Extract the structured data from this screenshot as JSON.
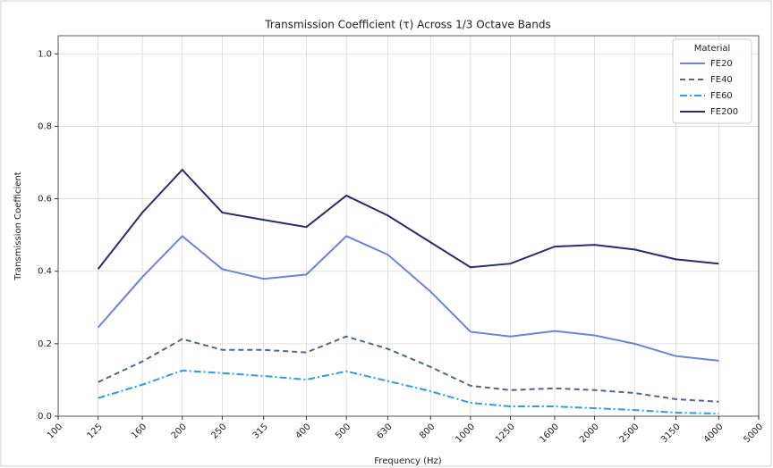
{
  "chart_data": {
    "type": "line",
    "title": "Transmission Coefficient (τ) Across 1/3 Octave Bands",
    "x_label": "Frequency (Hz)",
    "y_label": "Transmission Coefficient",
    "x": [
      125,
      160,
      200,
      250,
      315,
      400,
      500,
      630,
      800,
      1000,
      1250,
      1600,
      2000,
      2500,
      3150,
      4000
    ],
    "xlim": [
      100,
      5000
    ],
    "xticks": [
      100,
      125,
      160,
      200,
      250,
      315,
      400,
      500,
      630,
      800,
      1000,
      1250,
      1600,
      2000,
      2500,
      3150,
      4000,
      5000
    ],
    "x_log": true,
    "ylim": [
      0,
      1.05
    ],
    "yticks": [
      {
        "value": 0,
        "label": "0.0"
      },
      0.2,
      0.4,
      0.6,
      0.8,
      {
        "value": 1,
        "label": "1.0"
      }
    ],
    "grid": true,
    "legend_title": "Material",
    "legend_position": "upper-right",
    "series": [
      {
        "name": "FE20",
        "color": "#6a85d8",
        "dash": "solid",
        "values": [
          0.245,
          0.384,
          0.497,
          0.406,
          0.379,
          0.391,
          0.497,
          0.446,
          0.344,
          0.233,
          0.22,
          0.235,
          0.223,
          0.2,
          0.166,
          0.153
        ]
      },
      {
        "name": "FE40",
        "color": "#4e6690",
        "dash": "dashed",
        "values": [
          0.094,
          0.151,
          0.213,
          0.183,
          0.183,
          0.176,
          0.22,
          0.186,
          0.136,
          0.084,
          0.072,
          0.077,
          0.072,
          0.064,
          0.047,
          0.04
        ]
      },
      {
        "name": "FE60",
        "color": "#2b9bf0",
        "dash": "dashdot",
        "values": [
          0.05,
          0.087,
          0.126,
          0.119,
          0.111,
          0.101,
          0.124,
          0.097,
          0.069,
          0.037,
          0.027,
          0.027,
          0.022,
          0.017,
          0.01,
          0.007
        ]
      },
      {
        "name": "FE200",
        "color": "#2b2a6e",
        "dash": "solid",
        "values": [
          0.406,
          0.562,
          0.68,
          0.562,
          0.542,
          0.522,
          0.609,
          0.554,
          0.48,
          0.411,
          0.421,
          0.468,
          0.473,
          0.46,
          0.433,
          0.421
        ]
      }
    ]
  }
}
